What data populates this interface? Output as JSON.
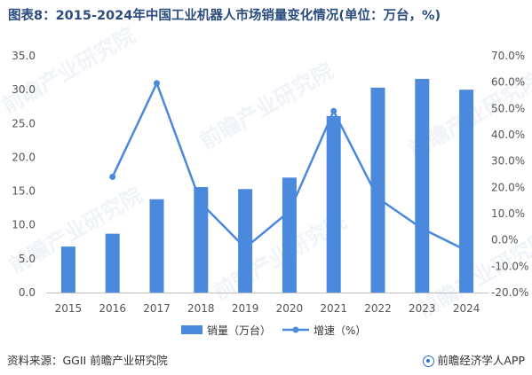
{
  "title": "图表8：2015-2024年中国工业机器人市场销量变化情况(单位：万台，%)",
  "chart_data": {
    "type": "bar",
    "categories": [
      "2015",
      "2016",
      "2017",
      "2018",
      "2019",
      "2020",
      "2021",
      "2022",
      "2023",
      "2024"
    ],
    "series": [
      {
        "name": "销量（万台）",
        "type": "bar",
        "axis": "left",
        "color": "#4a89dc",
        "values": [
          6.8,
          8.7,
          13.8,
          15.6,
          15.3,
          17.0,
          26.1,
          30.3,
          31.6,
          30.0
        ]
      },
      {
        "name": "增速（%）",
        "type": "line",
        "axis": "right",
        "color": "#4a89dc",
        "values": [
          null,
          24.0,
          59.6,
          14.0,
          -3.0,
          10.9,
          49.0,
          15.9,
          4.3,
          -4.0
        ]
      }
    ],
    "y_left": {
      "ticks": [
        "0.0",
        "5.0",
        "10.0",
        "15.0",
        "20.0",
        "25.0",
        "30.0",
        "35.0"
      ],
      "min": 0,
      "max": 35
    },
    "y_right": {
      "ticks": [
        "-20.0%",
        "-10.0%",
        "0.0%",
        "10.0%",
        "20.0%",
        "30.0%",
        "40.0%",
        "50.0%",
        "60.0%",
        "70.0%"
      ],
      "min": -20,
      "max": 70
    },
    "grid": false,
    "legend": "bottom-center"
  },
  "footer": {
    "source": "资料来源：GGII 前瞻产业研究院",
    "brand": "前瞻经济学人APP"
  },
  "watermark": "前瞻产业研究院"
}
